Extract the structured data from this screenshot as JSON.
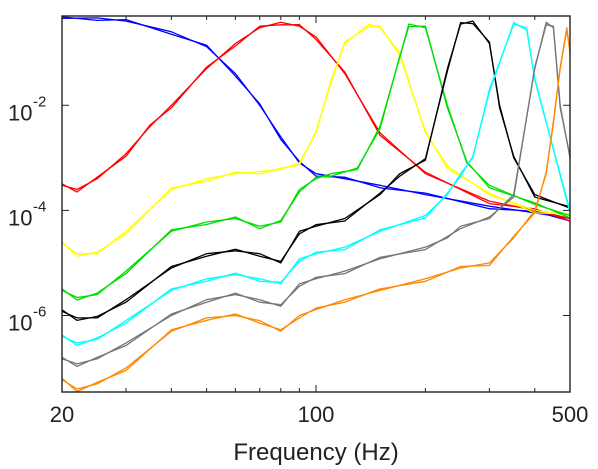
{
  "chart_data": {
    "type": "line",
    "title": "",
    "xlabel": "Frequency (Hz)",
    "ylabel": "",
    "x_scale": "log",
    "y_scale": "log",
    "xlim": [
      20,
      500
    ],
    "ylim": [
      3.5e-08,
      0.5
    ],
    "grid": false,
    "legend": "none",
    "x_ticks": [
      {
        "value": 20,
        "label": "20"
      },
      {
        "value": 100,
        "label": "100"
      },
      {
        "value": 500,
        "label": "500"
      }
    ],
    "y_ticks": [
      {
        "value": 0.01,
        "base": "10",
        "exp": "-2"
      },
      {
        "value": 0.0001,
        "base": "10",
        "exp": "-4"
      },
      {
        "value": 1e-06,
        "base": "10",
        "exp": "-6"
      }
    ],
    "series": [
      {
        "color": "#0000ff",
        "x": [
          20,
          25,
          30,
          40,
          50,
          60,
          70,
          80,
          90,
          100,
          120,
          150,
          200,
          300,
          400,
          500
        ],
        "y": [
          0.45,
          0.46,
          0.4,
          0.25,
          0.13,
          0.04,
          0.01,
          0.0025,
          0.0008,
          0.0005,
          0.0004,
          0.0003,
          0.0002,
          0.00012,
          9e-05,
          7e-05
        ]
      },
      {
        "color": "#ff0000",
        "x": [
          20,
          22,
          25,
          30,
          35,
          40,
          50,
          60,
          70,
          80,
          90,
          100,
          120,
          150,
          200,
          300,
          400,
          500
        ],
        "y": [
          0.0003,
          0.00025,
          0.0004,
          0.0012,
          0.004,
          0.01,
          0.05,
          0.15,
          0.3,
          0.38,
          0.32,
          0.2,
          0.04,
          0.003,
          0.0005,
          0.00015,
          0.0001,
          7e-05
        ]
      },
      {
        "color": "#ffff00",
        "x": [
          20,
          22,
          25,
          30,
          40,
          50,
          60,
          70,
          80,
          90,
          100,
          110,
          120,
          140,
          150,
          170,
          200,
          230,
          300,
          400,
          500
        ],
        "y": [
          2.4e-05,
          1.5e-05,
          1.5e-05,
          4e-05,
          0.00025,
          0.0004,
          0.0005,
          0.00055,
          0.0006,
          0.0008,
          0.003,
          0.03,
          0.15,
          0.35,
          0.3,
          0.1,
          0.003,
          0.0007,
          0.0002,
          0.0001,
          8e-05
        ]
      },
      {
        "color": "#00dd00",
        "x": [
          20,
          22,
          25,
          30,
          40,
          50,
          60,
          70,
          80,
          90,
          100,
          110,
          130,
          150,
          170,
          180,
          200,
          230,
          260,
          300,
          400,
          500
        ],
        "y": [
          3e-06,
          2.2e-06,
          2.5e-06,
          7e-06,
          4e-05,
          6e-05,
          7e-05,
          5e-05,
          6e-05,
          0.00025,
          0.0004,
          0.0005,
          0.0006,
          0.004,
          0.08,
          0.35,
          0.3,
          0.01,
          0.0008,
          0.0003,
          0.00013,
          8e-05
        ]
      },
      {
        "color": "#000000",
        "x": [
          20,
          22,
          25,
          30,
          40,
          50,
          60,
          70,
          80,
          90,
          100,
          120,
          150,
          170,
          200,
          230,
          250,
          270,
          300,
          320,
          350,
          400,
          500
        ],
        "y": [
          1.2e-06,
          9e-07,
          9e-07,
          2e-06,
          8e-06,
          1.5e-05,
          1.7e-05,
          1.5e-05,
          1e-05,
          4e-05,
          5e-05,
          7e-05,
          0.0002,
          0.0005,
          0.0009,
          0.05,
          0.35,
          0.4,
          0.15,
          0.01,
          0.001,
          0.0002,
          0.00011
        ]
      },
      {
        "color": "#00ffff",
        "x": [
          20,
          22,
          25,
          30,
          40,
          50,
          60,
          70,
          80,
          90,
          100,
          120,
          150,
          200,
          230,
          250,
          270,
          300,
          350,
          380,
          400,
          500
        ],
        "y": [
          4e-07,
          3e-07,
          3.5e-07,
          8e-07,
          3e-06,
          5e-06,
          6e-06,
          5e-06,
          4e-06,
          1.2e-05,
          1.5e-05,
          2e-05,
          4e-05,
          8e-05,
          0.0002,
          0.0005,
          0.001,
          0.02,
          0.35,
          0.3,
          0.03,
          0.0001
        ]
      },
      {
        "color": "#777777",
        "x": [
          20,
          22,
          25,
          30,
          40,
          50,
          60,
          70,
          80,
          90,
          100,
          120,
          150,
          200,
          230,
          250,
          300,
          350,
          400,
          430,
          450,
          470,
          500
        ],
        "y": [
          1.5e-07,
          1.2e-07,
          1.5e-07,
          3e-07,
          1e-06,
          2e-06,
          2.5e-06,
          2e-06,
          1.5e-06,
          4e-06,
          5e-06,
          7e-06,
          1.2e-05,
          2e-05,
          3e-05,
          5e-05,
          7e-05,
          0.0002,
          0.05,
          0.38,
          0.3,
          0.01,
          0.001
        ]
      },
      {
        "color": "#ff8800",
        "x": [
          20,
          22,
          25,
          30,
          40,
          50,
          60,
          70,
          80,
          90,
          100,
          120,
          150,
          200,
          250,
          300,
          350,
          400,
          430,
          450,
          470,
          490,
          500
        ],
        "y": [
          6e-08,
          4e-08,
          5e-08,
          1e-07,
          5e-07,
          9e-07,
          1e-06,
          8e-07,
          5e-07,
          1e-06,
          1.3e-06,
          2e-06,
          3e-06,
          5e-06,
          8e-06,
          1e-05,
          3e-05,
          0.0001,
          0.0005,
          0.005,
          0.05,
          0.3,
          0.1
        ]
      }
    ]
  }
}
